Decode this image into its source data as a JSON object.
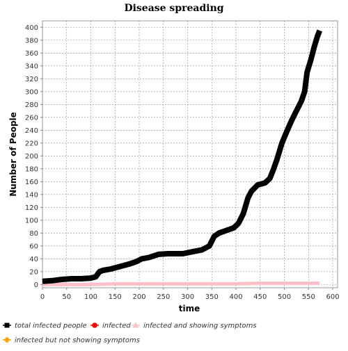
{
  "chart_data": {
    "type": "line",
    "title": "Disease spreading",
    "xlabel": "time",
    "ylabel": "Number of People",
    "xlim": [
      0,
      610
    ],
    "ylim": [
      -5,
      410
    ],
    "xticks": [
      0,
      50,
      100,
      150,
      200,
      250,
      300,
      350,
      400,
      450,
      500,
      550,
      600
    ],
    "yticks": [
      0,
      20,
      40,
      60,
      80,
      100,
      120,
      140,
      160,
      180,
      200,
      220,
      240,
      260,
      280,
      300,
      320,
      340,
      360,
      380,
      400
    ],
    "grid": true,
    "legend_position": "bottom",
    "series": [
      {
        "name": "total infected people",
        "color": "#000000",
        "marker": "square",
        "points": [
          [
            0,
            5
          ],
          [
            20,
            6
          ],
          [
            40,
            8
          ],
          [
            60,
            9
          ],
          [
            80,
            9
          ],
          [
            100,
            10
          ],
          [
            110,
            12
          ],
          [
            118,
            20
          ],
          [
            125,
            22
          ],
          [
            140,
            24
          ],
          [
            160,
            28
          ],
          [
            180,
            32
          ],
          [
            195,
            36
          ],
          [
            205,
            40
          ],
          [
            220,
            42
          ],
          [
            240,
            47
          ],
          [
            260,
            48
          ],
          [
            290,
            48
          ],
          [
            310,
            51
          ],
          [
            330,
            54
          ],
          [
            345,
            60
          ],
          [
            355,
            75
          ],
          [
            365,
            80
          ],
          [
            380,
            84
          ],
          [
            395,
            88
          ],
          [
            405,
            95
          ],
          [
            415,
            110
          ],
          [
            425,
            135
          ],
          [
            432,
            145
          ],
          [
            445,
            155
          ],
          [
            460,
            158
          ],
          [
            470,
            165
          ],
          [
            478,
            180
          ],
          [
            485,
            195
          ],
          [
            495,
            220
          ],
          [
            505,
            238
          ],
          [
            515,
            255
          ],
          [
            525,
            270
          ],
          [
            535,
            285
          ],
          [
            542,
            300
          ],
          [
            547,
            330
          ],
          [
            555,
            350
          ],
          [
            562,
            370
          ],
          [
            568,
            385
          ],
          [
            573,
            395
          ]
        ]
      },
      {
        "name": "infected",
        "color": "#ff0000",
        "marker": "circle",
        "points": []
      },
      {
        "name": "infected and showing symptoms",
        "color": "#ffc0cb",
        "marker": "triangle",
        "points": [
          [
            0,
            0
          ],
          [
            50,
            0
          ],
          [
            100,
            0
          ],
          [
            150,
            1
          ],
          [
            200,
            1
          ],
          [
            250,
            1
          ],
          [
            300,
            1
          ],
          [
            350,
            1
          ],
          [
            400,
            1
          ],
          [
            450,
            2
          ],
          [
            500,
            2
          ],
          [
            550,
            2
          ],
          [
            573,
            2
          ]
        ]
      },
      {
        "name": "infected but not showing symptoms",
        "color": "#ffa500",
        "marker": "diamond",
        "points": []
      }
    ]
  }
}
